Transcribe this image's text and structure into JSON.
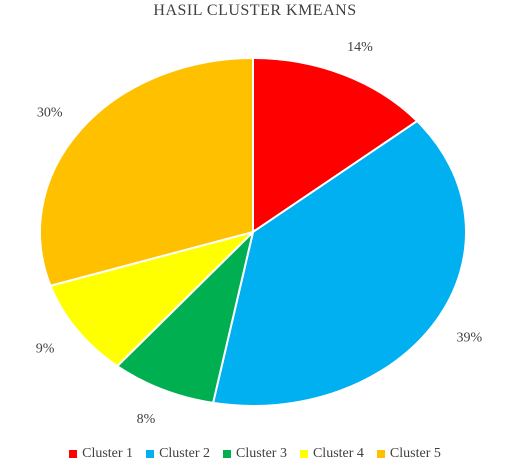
{
  "chart_data": {
    "type": "pie",
    "title": "HASIL CLUSTER KMEANS",
    "categories": [
      "Cluster 1",
      "Cluster 2",
      "Cluster 3",
      "Cluster 4",
      "Cluster 5"
    ],
    "values": [
      14,
      39,
      8,
      9,
      30
    ],
    "data_labels": [
      "14%",
      "39%",
      "8%",
      "9%",
      "30%"
    ],
    "colors": [
      "#ff0000",
      "#00b0f0",
      "#00b050",
      "#ffff00",
      "#ffc000"
    ],
    "legend_position": "bottom"
  }
}
